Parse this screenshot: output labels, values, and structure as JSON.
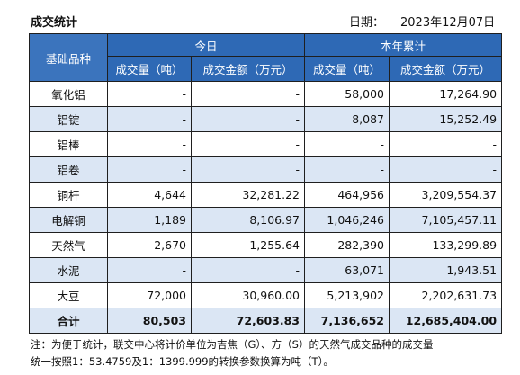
{
  "title": "成交统计",
  "date_label": "日期：",
  "date_value": "2023年12月07日",
  "headers": {
    "category": "基础品种",
    "today": "今日",
    "year": "本年累计",
    "vol": "成交量（吨）",
    "amt": "成交金额（万元）"
  },
  "rows": [
    {
      "name": "氧化铝",
      "t_vol": "-",
      "t_amt": "-",
      "y_vol": "58,000",
      "y_amt": "17,264.90"
    },
    {
      "name": "铝锭",
      "t_vol": "-",
      "t_amt": "-",
      "y_vol": "8,087",
      "y_amt": "15,252.49"
    },
    {
      "name": "铝棒",
      "t_vol": "-",
      "t_amt": "-",
      "y_vol": "-",
      "y_amt": "-"
    },
    {
      "name": "铝卷",
      "t_vol": "-",
      "t_amt": "-",
      "y_vol": "-",
      "y_amt": "-"
    },
    {
      "name": "铜杆",
      "t_vol": "4,644",
      "t_amt": "32,281.22",
      "y_vol": "464,956",
      "y_amt": "3,209,554.37"
    },
    {
      "name": "电解铜",
      "t_vol": "1,189",
      "t_amt": "8,106.97",
      "y_vol": "1,046,246",
      "y_amt": "7,105,457.11"
    },
    {
      "name": "天然气",
      "t_vol": "2,670",
      "t_amt": "1,255.64",
      "y_vol": "282,390",
      "y_amt": "133,299.89"
    },
    {
      "name": "水泥",
      "t_vol": "-",
      "t_amt": "-",
      "y_vol": "63,071",
      "y_amt": "1,943.51"
    },
    {
      "name": "大豆",
      "t_vol": "72,000",
      "t_amt": "30,960.00",
      "y_vol": "5,213,902",
      "y_amt": "2,202,631.73"
    }
  ],
  "total": {
    "name": "合计",
    "t_vol": "80,503",
    "t_amt": "72,603.83",
    "y_vol": "7,136,652",
    "y_amt": "12,685,404.00"
  },
  "note_line1": "注：为便于统计，联交中心将计价单位为吉焦（G）、方（S）的天然气成交品种的成交量",
  "note_line2": "统一按照1：53.4759及1：1399.999的转换参数换算为吨（T）。"
}
